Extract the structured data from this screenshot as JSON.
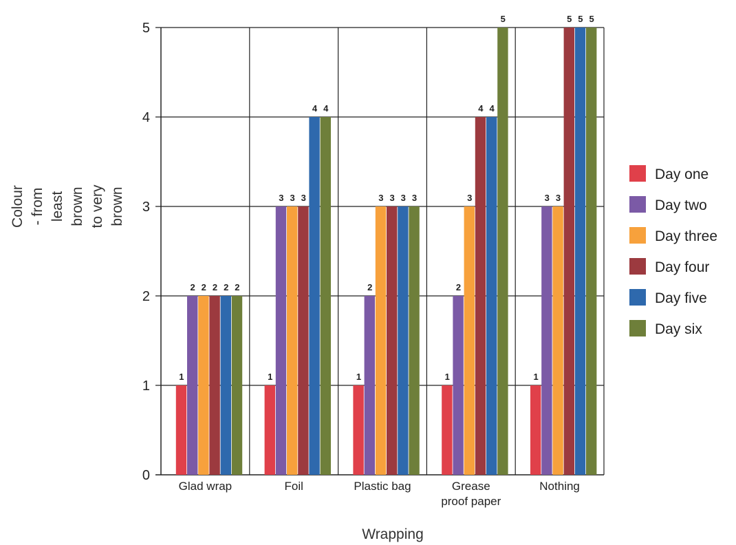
{
  "chart_data": {
    "type": "bar",
    "title": "",
    "xlabel": "Wrapping",
    "ylabel_lines": [
      "Colour",
      "- from",
      "least",
      "brown",
      "to very",
      "brown"
    ],
    "ylim": [
      0,
      5
    ],
    "yticks": [
      "0",
      "1",
      "2",
      "3",
      "4",
      "5"
    ],
    "grid": true,
    "legend_position": "right",
    "categories": [
      [
        "Glad wrap"
      ],
      [
        "Foil"
      ],
      [
        "Plastic bag"
      ],
      [
        "Grease",
        "proof paper"
      ],
      [
        "Nothing"
      ]
    ],
    "series": [
      {
        "name": "Day one",
        "color": "#e0404a",
        "values": [
          1,
          1,
          1,
          1,
          1
        ]
      },
      {
        "name": "Day two",
        "color": "#7b5aa6",
        "values": [
          2,
          3,
          2,
          2,
          3
        ]
      },
      {
        "name": "Day three",
        "color": "#f7a13c",
        "values": [
          2,
          3,
          3,
          3,
          3
        ]
      },
      {
        "name": "Day four",
        "color": "#9c3a3f",
        "values": [
          2,
          3,
          3,
          4,
          5
        ]
      },
      {
        "name": "Day five",
        "color": "#2e69ad",
        "values": [
          2,
          4,
          3,
          4,
          5
        ]
      },
      {
        "name": "Day six",
        "color": "#6e7f3a",
        "values": [
          2,
          4,
          3,
          5,
          5
        ]
      }
    ],
    "data_labels": [
      [
        "1",
        "2",
        "2",
        "2",
        "2",
        "2"
      ],
      [
        "1",
        "3",
        "3",
        "3",
        "4",
        "4"
      ],
      [
        "1",
        "2",
        "3",
        "3",
        "3",
        "3"
      ],
      [
        "1",
        "2",
        "3",
        "4",
        "4",
        "5"
      ],
      [
        "1",
        "3",
        "3",
        "5",
        "5",
        "5"
      ]
    ]
  }
}
